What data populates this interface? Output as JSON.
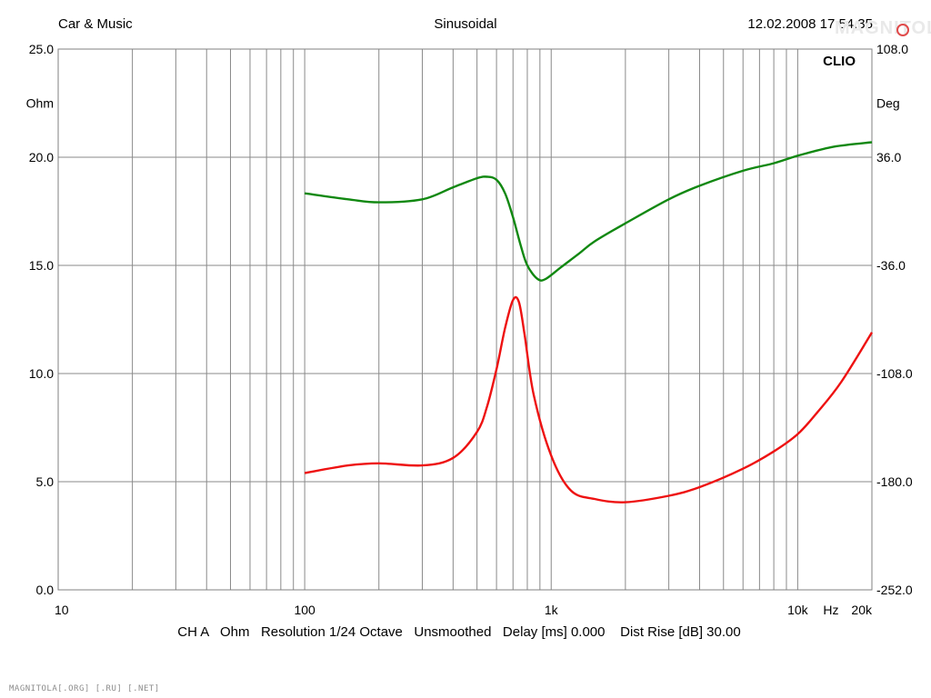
{
  "header": {
    "left": "Car & Music",
    "center": "Sinusoidal",
    "right": "12.02.2008 17.54.35"
  },
  "brand_label": "CLIO",
  "watermark_text": "MAGNITOLA",
  "site_watermark": "MAGNITOLA[.ORG] [.RU] [.NET]",
  "footer": "CH A   Ohm   Resolution 1/24 Octave   Unsmoothed   Delay [ms] 0.000    Dist Rise [dB] 30.00",
  "colors": {
    "grid": "#8a8a8a",
    "impedance": "#ee1111",
    "phase": "#118811"
  },
  "chart_data": {
    "type": "line",
    "title": "Sinusoidal",
    "x_scale": "log",
    "xlim": [
      10,
      20000
    ],
    "x_ticks": [
      {
        "value": 10,
        "label": "10"
      },
      {
        "value": 100,
        "label": "100"
      },
      {
        "value": 1000,
        "label": "1k"
      },
      {
        "value": 10000,
        "label": "10k"
      },
      {
        "value": 20000,
        "label": "20k"
      }
    ],
    "x_unit": "Hz",
    "y_left": {
      "label": "Ohm",
      "ylim": [
        0,
        25
      ],
      "ticks": [
        "0.0",
        "5.0",
        "10.0",
        "15.0",
        "20.0",
        "25.0"
      ]
    },
    "y_right": {
      "label": "Deg",
      "ylim": [
        -252,
        108
      ],
      "ticks": [
        "-252.0",
        "-180.0",
        "-108.0",
        "-36.0",
        "36.0",
        "108.0"
      ]
    },
    "grid": true,
    "series": [
      {
        "axis": "left",
        "color": "#ee1111",
        "x": [
          100,
          150,
          200,
          300,
          400,
          500,
          550,
          600,
          650,
          700,
          740,
          780,
          850,
          1000,
          1200,
          1500,
          2000,
          3000,
          4000,
          6000,
          8000,
          10000,
          12000,
          15000,
          20000
        ],
        "y": [
          5.4,
          5.75,
          5.85,
          5.75,
          6.1,
          7.3,
          8.5,
          10.2,
          12.1,
          13.4,
          13.3,
          11.8,
          9.0,
          6.2,
          4.6,
          4.2,
          4.05,
          4.35,
          4.75,
          5.6,
          6.4,
          7.2,
          8.2,
          9.6,
          11.9
        ]
      },
      {
        "axis": "right",
        "color": "#118811",
        "x": [
          100,
          150,
          200,
          300,
          400,
          500,
          550,
          600,
          650,
          700,
          750,
          800,
          880,
          950,
          1100,
          1300,
          1500,
          2000,
          3000,
          4000,
          6000,
          8000,
          10000,
          14000,
          20000
        ],
        "y": [
          12,
          8,
          6,
          8,
          16,
          22,
          23,
          21,
          12,
          -4,
          -22,
          -36,
          -45,
          -45,
          -37,
          -28,
          -20,
          -8,
          8,
          17,
          27,
          32,
          37,
          43,
          46
        ]
      }
    ]
  }
}
